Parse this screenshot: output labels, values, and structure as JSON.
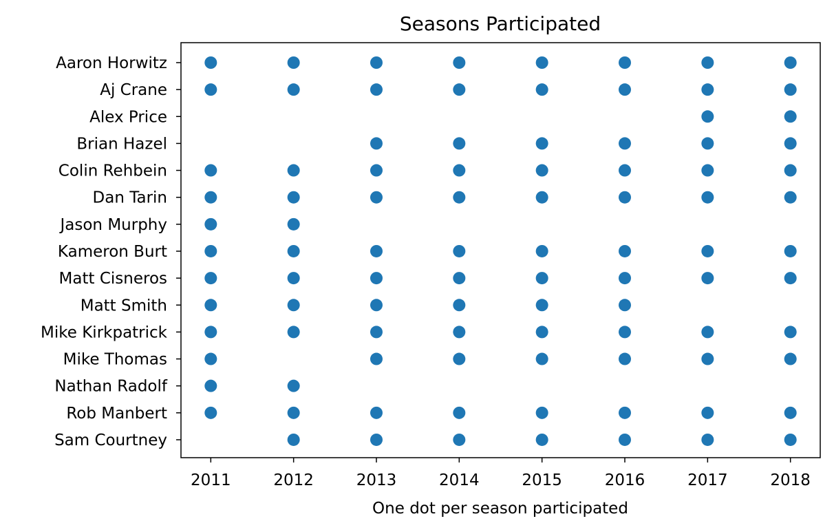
{
  "chart_data": {
    "type": "scatter",
    "title": "Seasons Participated",
    "xlabel": "One dot per season participated",
    "ylabel": "",
    "x_ticks": [
      2011,
      2012,
      2013,
      2014,
      2015,
      2016,
      2017,
      2018
    ],
    "xlim": [
      2010.64,
      2018.36
    ],
    "grid": false,
    "legend": "none",
    "marker_color": "#1f77b4",
    "players": [
      {
        "name": "Aaron Horwitz",
        "seasons": [
          2011,
          2012,
          2013,
          2014,
          2015,
          2016,
          2017,
          2018
        ]
      },
      {
        "name": "Aj Crane",
        "seasons": [
          2011,
          2012,
          2013,
          2014,
          2015,
          2016,
          2017,
          2018
        ]
      },
      {
        "name": "Alex Price",
        "seasons": [
          2017,
          2018
        ]
      },
      {
        "name": "Brian Hazel",
        "seasons": [
          2013,
          2014,
          2015,
          2016,
          2017,
          2018
        ]
      },
      {
        "name": "Colin Rehbein",
        "seasons": [
          2011,
          2012,
          2013,
          2014,
          2015,
          2016,
          2017,
          2018
        ]
      },
      {
        "name": "Dan Tarin",
        "seasons": [
          2011,
          2012,
          2013,
          2014,
          2015,
          2016,
          2017,
          2018
        ]
      },
      {
        "name": "Jason Murphy",
        "seasons": [
          2011,
          2012
        ]
      },
      {
        "name": "Kameron Burt",
        "seasons": [
          2011,
          2012,
          2013,
          2014,
          2015,
          2016,
          2017,
          2018
        ]
      },
      {
        "name": "Matt Cisneros",
        "seasons": [
          2011,
          2012,
          2013,
          2014,
          2015,
          2016,
          2017,
          2018
        ]
      },
      {
        "name": "Matt Smith",
        "seasons": [
          2011,
          2012,
          2013,
          2014,
          2015,
          2016
        ]
      },
      {
        "name": "Mike Kirkpatrick",
        "seasons": [
          2011,
          2012,
          2013,
          2014,
          2015,
          2016,
          2017,
          2018
        ]
      },
      {
        "name": "Mike Thomas",
        "seasons": [
          2011,
          2013,
          2014,
          2015,
          2016,
          2017,
          2018
        ]
      },
      {
        "name": "Nathan Radolf",
        "seasons": [
          2011,
          2012
        ]
      },
      {
        "name": "Rob Manbert",
        "seasons": [
          2011,
          2012,
          2013,
          2014,
          2015,
          2016,
          2017,
          2018
        ]
      },
      {
        "name": "Sam Courtney",
        "seasons": [
          2012,
          2013,
          2014,
          2015,
          2016,
          2017,
          2018
        ]
      }
    ]
  }
}
